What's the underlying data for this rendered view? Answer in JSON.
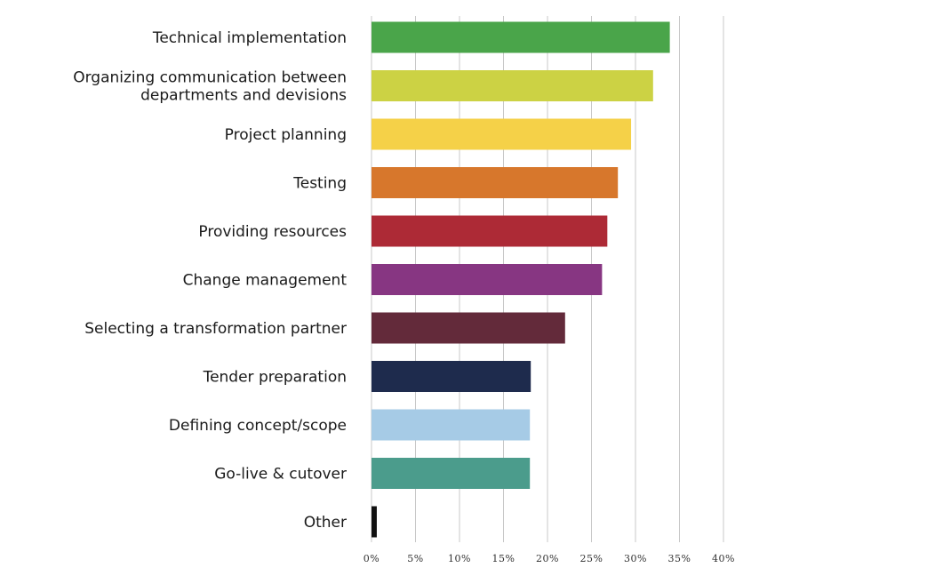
{
  "chart_data": {
    "type": "bar",
    "orientation": "horizontal",
    "title": "",
    "xlabel": "",
    "ylabel": "",
    "xlim": [
      0,
      40
    ],
    "grid": true,
    "legend": "none",
    "ticks": [
      0,
      5,
      10,
      15,
      20,
      25,
      30,
      35,
      40
    ],
    "tick_labels": [
      "0%",
      "5%",
      "10%",
      "15%",
      "20%",
      "25%",
      "30%",
      "35%",
      "40%"
    ],
    "categories": [
      [
        "Technical implementation"
      ],
      [
        "Organizing communication between",
        "departments and devisions"
      ],
      [
        "Project planning"
      ],
      [
        "Testing"
      ],
      [
        "Providing resources"
      ],
      [
        "Change management"
      ],
      [
        "Selecting a transformation partner"
      ],
      [
        "Tender preparation"
      ],
      [
        "Defining concept/scope"
      ],
      [
        "Go-live & cutover"
      ],
      [
        "Other"
      ]
    ],
    "values": [
      33.9,
      32.0,
      29.5,
      28.0,
      26.8,
      26.2,
      22.0,
      18.1,
      18.0,
      18.0,
      0.6
    ],
    "colors": [
      "#4aa54a",
      "#ccd244",
      "#f5d148",
      "#d7772c",
      "#ad2a36",
      "#873682",
      "#632a3a",
      "#1e2b4d",
      "#a6cbe6",
      "#4b9c8c",
      "#111111"
    ]
  }
}
